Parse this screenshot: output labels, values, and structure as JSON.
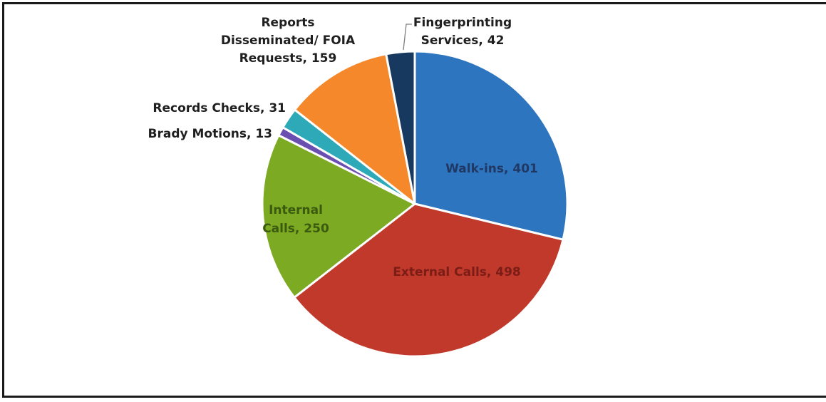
{
  "chart_data": {
    "type": "pie",
    "title": "",
    "slices": [
      {
        "category": "Walk-ins",
        "value": 401,
        "color": "#2e75c0",
        "label": "Walk-ins, 401",
        "label_color": "#1f3864",
        "label_inside": true
      },
      {
        "category": "External Calls",
        "value": 498,
        "color": "#c0392b",
        "label": "External Calls, 498",
        "label_color": "#7b1d16",
        "label_inside": true
      },
      {
        "category": "Internal Calls",
        "value": 250,
        "color": "#7caa22",
        "label": "Internal Calls, 250",
        "label_color": "#3a5a10",
        "label_inside": true
      },
      {
        "category": "Brady Motions",
        "value": 13,
        "color": "#6a4fb0",
        "label": "Brady Motions, 13",
        "label_color": "#1f1f1f",
        "label_inside": false
      },
      {
        "category": "Records Checks",
        "value": 31,
        "color": "#2ea9b8",
        "label": "Records Checks, 31",
        "label_color": "#1f1f1f",
        "label_inside": false
      },
      {
        "category": "Reports Disseminated/ FOIA Requests",
        "value": 159,
        "color": "#f5882a",
        "label": "Reports Disseminated/ FOIA Requests, 159",
        "label_color": "#1f1f1f",
        "label_inside": false
      },
      {
        "category": "Fingerprinting Services",
        "value": 42,
        "color": "#17395f",
        "label": "Fingerprinting Services, 42",
        "label_color": "#1f1f1f",
        "label_inside": false
      }
    ],
    "start": "12 o'clock",
    "direction": "clockwise",
    "legend": "none",
    "labels": {
      "walkins": [
        "Walk-ins, 401"
      ],
      "external": [
        "External Calls, 498"
      ],
      "internal": [
        "Internal",
        "Calls, 250"
      ],
      "brady": [
        "Brady Motions, 13"
      ],
      "records": [
        "Records Checks, 31"
      ],
      "reports": [
        "Reports",
        "Disseminated/ FOIA",
        "Requests, 159"
      ],
      "finger": [
        "Fingerprinting",
        "Services, 42"
      ]
    }
  }
}
